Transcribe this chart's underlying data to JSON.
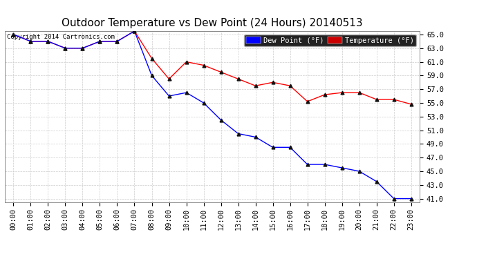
{
  "title": "Outdoor Temperature vs Dew Point (24 Hours) 20140513",
  "copyright": "Copyright 2014 Cartronics.com",
  "x_labels": [
    "00:00",
    "01:00",
    "02:00",
    "03:00",
    "04:00",
    "05:00",
    "06:00",
    "07:00",
    "08:00",
    "09:00",
    "10:00",
    "11:00",
    "12:00",
    "13:00",
    "14:00",
    "15:00",
    "16:00",
    "17:00",
    "18:00",
    "19:00",
    "20:00",
    "21:00",
    "22:00",
    "23:00"
  ],
  "temperature": [
    65.0,
    64.0,
    64.0,
    63.0,
    63.0,
    64.0,
    64.0,
    65.5,
    61.5,
    58.5,
    61.0,
    60.5,
    59.5,
    58.5,
    57.5,
    58.0,
    57.5,
    55.2,
    56.2,
    56.5,
    56.5,
    55.5,
    55.5,
    54.8
  ],
  "dew_point": [
    65.0,
    64.0,
    64.0,
    63.0,
    63.0,
    64.0,
    64.0,
    65.5,
    59.0,
    56.0,
    56.5,
    55.0,
    52.5,
    50.5,
    50.0,
    48.5,
    48.5,
    46.0,
    46.0,
    45.5,
    45.0,
    43.5,
    41.0,
    41.0
  ],
  "temp_color": "#ff0000",
  "dew_color": "#0000ff",
  "legend_dew_bg": "#0000ff",
  "legend_temp_bg": "#cc0000",
  "ylim_min": 41.0,
  "ylim_max": 65.0,
  "ytick_step": 2.0,
  "bg_color": "#ffffff",
  "plot_bg_color": "#ffffff",
  "grid_color": "#cccccc",
  "title_fontsize": 11,
  "tick_fontsize": 7.5,
  "marker": "^",
  "marker_color": "#111111",
  "marker_size": 3.5
}
